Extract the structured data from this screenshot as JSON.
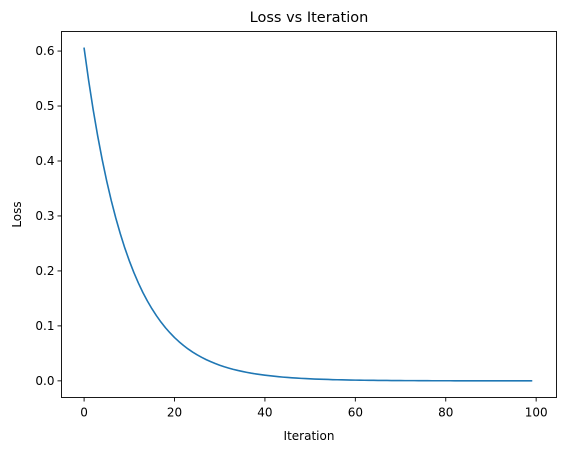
{
  "chart_data": {
    "type": "line",
    "title": "Loss vs Iteration",
    "xlabel": "Iteration",
    "ylabel": "Loss",
    "xlim": [
      -5,
      104.5
    ],
    "ylim": [
      -0.0303,
      0.6356
    ],
    "xticks": [
      0,
      20,
      40,
      60,
      80,
      100
    ],
    "xtick_labels": [
      "0",
      "20",
      "40",
      "60",
      "80",
      "100"
    ],
    "yticks": [
      0.0,
      0.1,
      0.2,
      0.3,
      0.4,
      0.5,
      0.6
    ],
    "ytick_labels": [
      "0.0",
      "0.1",
      "0.2",
      "0.3",
      "0.4",
      "0.5",
      "0.6"
    ],
    "grid": false,
    "legend": "none",
    "series": [
      {
        "color": "#1f77b4",
        "x": [
          0,
          1,
          2,
          3,
          4,
          5,
          6,
          7,
          8,
          9,
          10,
          11,
          12,
          13,
          14,
          15,
          16,
          17,
          18,
          19,
          20,
          21,
          22,
          23,
          24,
          25,
          26,
          27,
          28,
          29,
          30,
          31,
          32,
          33,
          34,
          35,
          36,
          37,
          38,
          39,
          40,
          41,
          42,
          43,
          44,
          45,
          46,
          47,
          48,
          49,
          50,
          51,
          52,
          53,
          54,
          55,
          56,
          57,
          58,
          59,
          60,
          61,
          62,
          63,
          64,
          65,
          66,
          67,
          68,
          69,
          70,
          71,
          72,
          73,
          74,
          75,
          76,
          77,
          78,
          79,
          80,
          81,
          82,
          83,
          84,
          85,
          86,
          87,
          88,
          89,
          90,
          91,
          92,
          93,
          94,
          95,
          96,
          97,
          98,
          99
        ],
        "y": [
          0.6053,
          0.5466,
          0.4936,
          0.4458,
          0.4026,
          0.3635,
          0.3283,
          0.2965,
          0.2678,
          0.2418,
          0.2184,
          0.1972,
          0.1781,
          0.1608,
          0.1453,
          0.1312,
          0.1185,
          0.107,
          0.0966,
          0.0873,
          0.0788,
          0.0712,
          0.0643,
          0.058,
          0.0524,
          0.0473,
          0.0428,
          0.0386,
          0.0349,
          0.0315,
          0.0284,
          0.0257,
          0.0232,
          0.0209,
          0.0189,
          0.0171,
          0.0154,
          0.0139,
          0.0126,
          0.0114,
          0.0103,
          0.0093,
          0.0084,
          0.0075,
          0.0068,
          0.0062,
          0.0056,
          0.005,
          0.0045,
          0.0041,
          0.0037,
          0.0033,
          0.003,
          0.0027,
          0.0025,
          0.0022,
          0.002,
          0.0018,
          0.0016,
          0.0015,
          0.0013,
          0.0012,
          0.0011,
          0.001,
          0.0009,
          0.0008,
          0.0007,
          0.0007,
          0.0006,
          0.0005,
          0.0005,
          0.0004,
          0.0004,
          0.0004,
          0.0003,
          0.0003,
          0.0003,
          0.0002,
          0.0002,
          0.0002,
          0.0002,
          0.0002,
          0.0001,
          0.0001,
          0.0001,
          0.0001,
          0.0001,
          0.0001,
          0.0001,
          0.0001,
          0.0001,
          0.0001,
          0.0,
          0.0,
          0.0,
          0.0,
          0.0,
          0.0,
          0.0,
          0.0
        ]
      }
    ]
  }
}
